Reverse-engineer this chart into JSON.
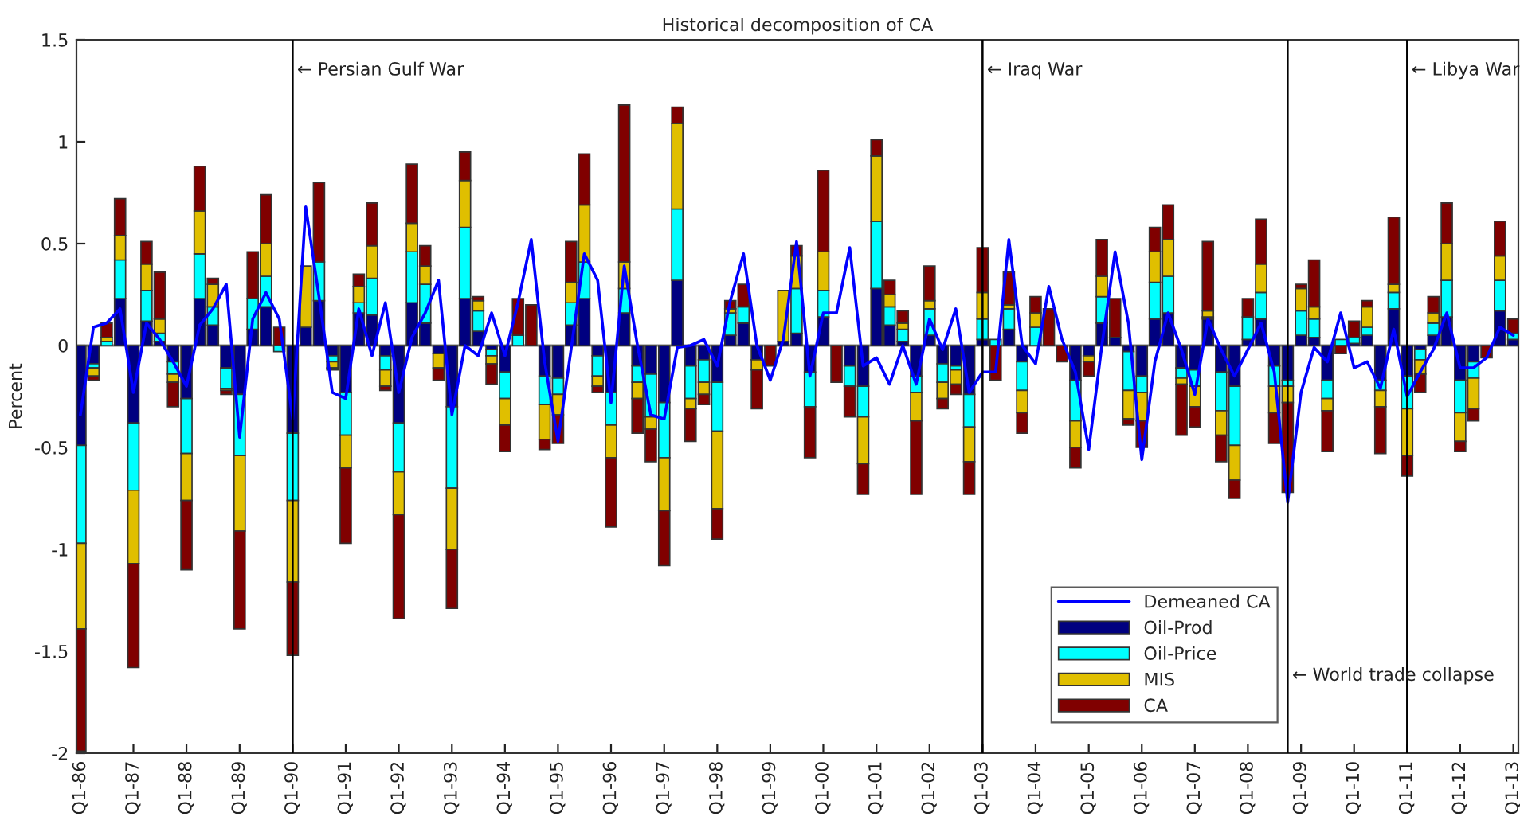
{
  "chart_data": {
    "type": "bar",
    "stacked": true,
    "title": "Historical decomposition of CA",
    "ylabel": "Percent",
    "x": [
      "1986-01",
      "1986-04",
      "1986-07",
      "1986-10",
      "1987-01",
      "1987-04",
      "1987-07",
      "1987-10",
      "1988-01",
      "1988-04",
      "1988-07",
      "1988-10",
      "1989-01",
      "1989-04",
      "1989-07",
      "1989-10",
      "1990-01",
      "1990-04",
      "1990-07",
      "1990-10",
      "1991-01",
      "1991-04",
      "1991-07",
      "1991-10",
      "1992-01",
      "1992-04",
      "1992-07",
      "1992-10",
      "1993-01",
      "1993-04",
      "1993-07",
      "1993-10",
      "1994-01",
      "1994-04",
      "1994-07",
      "1994-10",
      "1995-01",
      "1995-04",
      "1995-07",
      "1995-10",
      "1996-01",
      "1996-04",
      "1996-07",
      "1996-10",
      "1997-01",
      "1997-04",
      "1997-07",
      "1997-10",
      "1998-01",
      "1998-04",
      "1998-07",
      "1998-10",
      "1999-01",
      "1999-04",
      "1999-07",
      "1999-10",
      "2000-01",
      "2000-04",
      "2000-07",
      "2000-10",
      "2001-01",
      "2001-04",
      "2001-07",
      "2001-10",
      "2002-01",
      "2002-04",
      "2002-07",
      "2002-10",
      "2003-01",
      "2003-04",
      "2003-07",
      "2003-10",
      "2004-01",
      "2004-04",
      "2004-07",
      "2004-10",
      "2005-01",
      "2005-04",
      "2005-07",
      "2005-10",
      "2006-01",
      "2006-04",
      "2006-07",
      "2006-10",
      "2007-01",
      "2007-04",
      "2007-07",
      "2007-10",
      "2008-01",
      "2008-04",
      "2008-07",
      "2008-10",
      "2009-01",
      "2009-04",
      "2009-07",
      "2009-10",
      "2010-01",
      "2010-04",
      "2010-07",
      "2010-10",
      "2011-01",
      "2011-04",
      "2011-07",
      "2011-10",
      "2012-01",
      "2012-04",
      "2012-07",
      "2012-10",
      "2013-01"
    ],
    "xlim": [
      "1985-12-05",
      "2013-02-05"
    ],
    "xticks": [
      {
        "value": "1986-01",
        "label": "Q1-86"
      },
      {
        "value": "1987-01",
        "label": "Q1-87"
      },
      {
        "value": "1988-01",
        "label": "Q1-88"
      },
      {
        "value": "1989-01",
        "label": "Q1-89"
      },
      {
        "value": "1990-01",
        "label": "Q1-90"
      },
      {
        "value": "1991-01",
        "label": "Q1-91"
      },
      {
        "value": "1992-01",
        "label": "Q1-92"
      },
      {
        "value": "1993-01",
        "label": "Q1-93"
      },
      {
        "value": "1994-01",
        "label": "Q1-94"
      },
      {
        "value": "1995-01",
        "label": "Q1-95"
      },
      {
        "value": "1996-01",
        "label": "Q1-96"
      },
      {
        "value": "1997-01",
        "label": "Q1-97"
      },
      {
        "value": "1998-01",
        "label": "Q1-98"
      },
      {
        "value": "1999-01",
        "label": "Q1-99"
      },
      {
        "value": "2000-01",
        "label": "Q1-00"
      },
      {
        "value": "2001-01",
        "label": "Q1-01"
      },
      {
        "value": "2002-01",
        "label": "Q1-02"
      },
      {
        "value": "2003-01",
        "label": "Q1-03"
      },
      {
        "value": "2004-01",
        "label": "Q1-04"
      },
      {
        "value": "2005-01",
        "label": "Q1-05"
      },
      {
        "value": "2006-01",
        "label": "Q1-06"
      },
      {
        "value": "2007-01",
        "label": "Q1-07"
      },
      {
        "value": "2008-01",
        "label": "Q1-08"
      },
      {
        "value": "2009-01",
        "label": "Q1-09"
      },
      {
        "value": "2010-01",
        "label": "Q1-10"
      },
      {
        "value": "2011-01",
        "label": "Q1-11"
      },
      {
        "value": "2012-01",
        "label": "Q1-12"
      },
      {
        "value": "2013-01",
        "label": "Q1-13"
      }
    ],
    "ylim": [
      -2,
      1.5
    ],
    "yticks": [
      -2,
      -1.5,
      -1,
      -0.5,
      0,
      0.5,
      1,
      1.5
    ],
    "legend": "bottom right",
    "series": [
      {
        "name": "Demeaned CA",
        "type": "line",
        "color": "#0000ff",
        "values": [
          -0.34,
          0.09,
          0.11,
          0.18,
          -0.23,
          0.11,
          0.03,
          -0.08,
          -0.2,
          0.1,
          0.18,
          0.3,
          -0.45,
          0.13,
          0.26,
          0.13,
          -0.36,
          0.68,
          0.24,
          -0.23,
          -0.26,
          0.18,
          -0.05,
          0.21,
          -0.23,
          0.04,
          0.16,
          0.32,
          -0.34,
          0.0,
          -0.05,
          0.16,
          -0.05,
          0.21,
          0.52,
          -0.08,
          -0.47,
          -0.02,
          0.45,
          0.32,
          -0.28,
          0.39,
          0.0,
          -0.34,
          -0.36,
          -0.01,
          0.0,
          0.03,
          -0.1,
          0.22,
          0.45,
          0.0,
          -0.17,
          0.03,
          0.51,
          -0.15,
          0.16,
          0.16,
          0.48,
          -0.1,
          -0.06,
          -0.19,
          0.0,
          -0.19,
          0.13,
          -0.02,
          0.18,
          -0.23,
          -0.13,
          -0.13,
          0.52,
          0.0,
          -0.09,
          0.29,
          0.03,
          -0.13,
          -0.51,
          0.0,
          0.46,
          0.11,
          -0.56,
          -0.08,
          0.16,
          -0.02,
          -0.24,
          0.13,
          -0.02,
          -0.15,
          -0.02,
          0.11,
          -0.13,
          -0.77,
          -0.23,
          -0.01,
          -0.08,
          0.16,
          -0.11,
          -0.08,
          -0.21,
          0.08,
          -0.25,
          -0.13,
          -0.02,
          0.16,
          -0.11,
          -0.11,
          -0.06,
          0.09,
          0.05
        ]
      },
      {
        "name": "Oil-Prod",
        "color": "#000080",
        "values": [
          -0.49,
          -0.09,
          0,
          0.23,
          -0.38,
          0.12,
          0.02,
          -0.08,
          -0.26,
          0.23,
          0.1,
          -0.11,
          -0.24,
          0.08,
          0.19,
          0,
          -0.43,
          0.09,
          0.22,
          -0.05,
          -0.23,
          0.16,
          0.15,
          -0.05,
          -0.38,
          0.21,
          0.11,
          -0.04,
          -0.3,
          0.23,
          0.07,
          -0.02,
          -0.13,
          0,
          0,
          -0.15,
          -0.16,
          0.1,
          0.23,
          -0.05,
          -0.23,
          0.16,
          -0.1,
          -0.14,
          -0.28,
          0.32,
          -0.1,
          -0.07,
          -0.18,
          0.05,
          0.11,
          -0.07,
          0,
          0.02,
          0.06,
          -0.13,
          0.14,
          0,
          -0.1,
          -0.2,
          0.28,
          0.1,
          0.02,
          -0.15,
          0.05,
          -0.09,
          -0.1,
          -0.24,
          0.03,
          0,
          0.08,
          -0.08,
          0,
          0,
          0,
          -0.17,
          -0.05,
          0.11,
          0.04,
          -0.03,
          -0.15,
          0.13,
          0.16,
          -0.11,
          -0.12,
          0.13,
          -0.13,
          -0.2,
          0.03,
          0.13,
          -0.1,
          -0.17,
          0.05,
          0.04,
          -0.17,
          0,
          0.01,
          0.05,
          -0.17,
          0.18,
          -0.15,
          -0.02,
          0.05,
          0.14,
          -0.17,
          -0.08,
          0,
          0.17,
          0.03
        ]
      },
      {
        "name": "Oil-Price",
        "color": "#00ffff",
        "values": [
          -0.48,
          -0.02,
          0.02,
          0.19,
          -0.33,
          0.15,
          0.04,
          -0.06,
          -0.27,
          0.22,
          0.09,
          -0.1,
          -0.3,
          0.15,
          0.15,
          -0.03,
          -0.33,
          0,
          0.19,
          -0.03,
          -0.21,
          0.05,
          0.18,
          -0.07,
          -0.24,
          0.25,
          0.19,
          0,
          -0.4,
          0.35,
          0.1,
          -0.03,
          -0.13,
          0.05,
          0,
          -0.14,
          -0.08,
          0.11,
          0.18,
          -0.1,
          -0.16,
          0.12,
          -0.08,
          -0.21,
          -0.27,
          0.35,
          -0.16,
          -0.11,
          -0.24,
          0.11,
          0.08,
          0,
          0,
          0,
          0.22,
          -0.17,
          0.13,
          0,
          -0.1,
          -0.15,
          0.33,
          0.09,
          0.06,
          -0.08,
          0.13,
          -0.09,
          -0.02,
          -0.16,
          0.1,
          0.03,
          0.1,
          -0.14,
          0.09,
          0,
          0,
          -0.2,
          0,
          0.13,
          0,
          -0.19,
          -0.08,
          0.18,
          0.18,
          -0.05,
          -0.08,
          0.01,
          -0.19,
          -0.29,
          0.11,
          0.13,
          -0.1,
          -0.03,
          0.12,
          0.09,
          -0.09,
          0.03,
          0.03,
          0.04,
          -0.05,
          0.08,
          -0.16,
          -0.05,
          0.06,
          0.18,
          -0.16,
          -0.08,
          0,
          0.15,
          0.03
        ]
      },
      {
        "name": "MIS",
        "color": "#e0bf00",
        "values": [
          -0.42,
          -0.04,
          0.02,
          0.12,
          -0.36,
          0.13,
          0.07,
          -0.04,
          -0.23,
          0.21,
          0.11,
          -0.01,
          -0.37,
          0,
          0.16,
          0,
          -0.4,
          0.3,
          0,
          -0.03,
          -0.16,
          0.08,
          0.16,
          -0.08,
          -0.21,
          0.14,
          0.09,
          -0.07,
          -0.3,
          0.23,
          0.05,
          -0.04,
          -0.13,
          0,
          0,
          -0.17,
          -0.1,
          0.1,
          0.28,
          -0.05,
          -0.16,
          0.13,
          -0.08,
          -0.06,
          -0.26,
          0.42,
          -0.05,
          -0.06,
          -0.38,
          0.02,
          0,
          -0.05,
          0,
          0.25,
          0.16,
          0,
          0.19,
          0,
          0,
          -0.23,
          0.32,
          0.06,
          0.03,
          -0.14,
          0.04,
          -0.08,
          -0.07,
          -0.17,
          0.13,
          0,
          0.02,
          -0.11,
          0.07,
          0,
          0,
          -0.13,
          -0.03,
          0.1,
          0,
          -0.14,
          -0.14,
          0.15,
          0.18,
          -0.03,
          -0.1,
          0.03,
          -0.12,
          -0.17,
          0,
          0.14,
          -0.13,
          -0.08,
          0.11,
          0.06,
          -0.06,
          0,
          0,
          0.1,
          -0.08,
          0.04,
          -0.23,
          -0.07,
          0.05,
          0.18,
          -0.14,
          -0.15,
          0,
          0.12,
          0
        ]
      },
      {
        "name": "CA",
        "color": "#800000",
        "values": [
          -0.6,
          -0.02,
          0.07,
          0.18,
          -0.51,
          0.11,
          0.23,
          -0.12,
          -0.34,
          0.22,
          0.03,
          -0.02,
          -0.48,
          0.23,
          0.24,
          0.09,
          -0.36,
          0,
          0.39,
          -0.01,
          -0.37,
          0.06,
          0.21,
          -0.02,
          -0.51,
          0.29,
          0.1,
          -0.06,
          -0.29,
          0.14,
          0.02,
          -0.1,
          -0.13,
          0.18,
          0.2,
          -0.05,
          -0.14,
          0.2,
          0.25,
          -0.03,
          -0.34,
          0.77,
          -0.17,
          -0.16,
          -0.27,
          0.08,
          -0.16,
          -0.05,
          -0.15,
          0.04,
          0.11,
          -0.19,
          -0.1,
          0,
          0.05,
          -0.25,
          0.4,
          -0.18,
          -0.15,
          -0.15,
          0.08,
          0.07,
          0.06,
          -0.36,
          0.17,
          -0.05,
          -0.05,
          -0.16,
          0.22,
          -0.17,
          0.16,
          -0.1,
          0.08,
          0.18,
          -0.08,
          -0.1,
          -0.07,
          0.18,
          0.19,
          -0.03,
          -0.13,
          0.12,
          0.17,
          -0.25,
          -0.1,
          0.34,
          -0.13,
          -0.09,
          0.09,
          0.22,
          -0.15,
          -0.44,
          0.02,
          0.23,
          -0.2,
          -0.04,
          0.08,
          0.03,
          -0.23,
          0.33,
          -0.1,
          -0.09,
          0.08,
          0.2,
          -0.05,
          -0.06,
          -0.06,
          0.17,
          0.07
        ]
      }
    ],
    "ref_lines": [
      {
        "axis": "y",
        "value": 0,
        "color": "#808080"
      },
      {
        "axis": "x",
        "value": "1990-01",
        "color": "#000000"
      },
      {
        "axis": "x",
        "value": "2003-01",
        "color": "#000000"
      },
      {
        "axis": "x",
        "value": "2008-10",
        "color": "#000000"
      },
      {
        "axis": "x",
        "value": "2011-01",
        "color": "#000000"
      }
    ],
    "annotations": [
      {
        "text": "← Persian Gulf War",
        "x": "1990-01",
        "y": 1.35
      },
      {
        "text": "← Iraq War",
        "x": "2003-01",
        "y": 1.35
      },
      {
        "text": "← World trade collapse",
        "x": "2008-10",
        "y": -1.62
      },
      {
        "text": "← Libya War",
        "x": "2011-01",
        "y": 1.35
      }
    ]
  }
}
